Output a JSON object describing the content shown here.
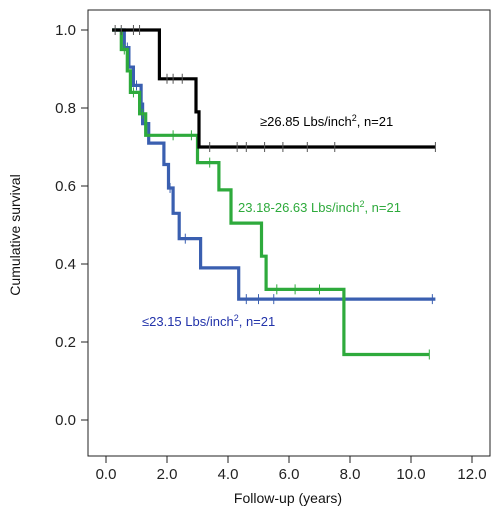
{
  "chart_data": {
    "type": "line",
    "subtype": "kaplan-meier step survival curves",
    "xlabel": "Follow-up (years)",
    "ylabel": "Cumulative survival",
    "xlim": [
      0,
      12
    ],
    "ylim": [
      0,
      1
    ],
    "x_ticks": [
      "0.0",
      "2.0",
      "4.0",
      "6.0",
      "8.0",
      "10.0",
      "12.0"
    ],
    "y_ticks": [
      "0.0",
      "0.2",
      "0.4",
      "0.6",
      "0.8",
      "1.0"
    ],
    "grid": false,
    "legend": "none (inline annotations)",
    "series": [
      {
        "color": "#000000",
        "steps": [
          [
            0.2,
            1.0
          ],
          [
            1.75,
            1.0
          ],
          [
            1.75,
            0.875
          ],
          [
            2.95,
            0.875
          ],
          [
            2.95,
            0.79
          ],
          [
            3.05,
            0.79
          ],
          [
            3.05,
            0.7
          ],
          [
            10.8,
            0.7
          ]
        ],
        "censored": [
          [
            0.3,
            1.0
          ],
          [
            0.5,
            1.0
          ],
          [
            0.9,
            1.0
          ],
          [
            1.1,
            1.0
          ],
          [
            2.0,
            0.875
          ],
          [
            2.2,
            0.875
          ],
          [
            2.5,
            0.875
          ],
          [
            3.4,
            0.7
          ],
          [
            4.3,
            0.7
          ],
          [
            4.6,
            0.7
          ],
          [
            5.2,
            0.7
          ],
          [
            5.8,
            0.7
          ],
          [
            6.6,
            0.7
          ],
          [
            7.5,
            0.7
          ],
          [
            10.8,
            0.7
          ]
        ]
      },
      {
        "color": "#2eaa3c",
        "steps": [
          [
            0.2,
            1.0
          ],
          [
            0.5,
            1.0
          ],
          [
            0.5,
            0.95
          ],
          [
            0.7,
            0.95
          ],
          [
            0.7,
            0.895
          ],
          [
            0.8,
            0.895
          ],
          [
            0.8,
            0.84
          ],
          [
            1.1,
            0.84
          ],
          [
            1.1,
            0.785
          ],
          [
            1.3,
            0.785
          ],
          [
            1.3,
            0.73
          ],
          [
            3.0,
            0.73
          ],
          [
            3.0,
            0.66
          ],
          [
            3.7,
            0.66
          ],
          [
            3.7,
            0.59
          ],
          [
            4.1,
            0.59
          ],
          [
            4.1,
            0.505
          ],
          [
            5.1,
            0.505
          ],
          [
            5.1,
            0.42
          ],
          [
            5.25,
            0.42
          ],
          [
            5.25,
            0.335
          ],
          [
            7.8,
            0.335
          ],
          [
            7.8,
            0.168
          ],
          [
            10.6,
            0.168
          ]
        ],
        "censored": [
          [
            0.6,
            0.95
          ],
          [
            0.9,
            0.84
          ],
          [
            1.2,
            0.785
          ],
          [
            2.2,
            0.73
          ],
          [
            2.8,
            0.73
          ],
          [
            3.4,
            0.66
          ],
          [
            5.6,
            0.335
          ],
          [
            6.2,
            0.335
          ],
          [
            7.0,
            0.335
          ],
          [
            10.6,
            0.168
          ]
        ]
      },
      {
        "color": "#3a5fb0",
        "steps": [
          [
            0.2,
            1.0
          ],
          [
            0.6,
            1.0
          ],
          [
            0.6,
            0.955
          ],
          [
            0.75,
            0.955
          ],
          [
            0.75,
            0.905
          ],
          [
            0.9,
            0.905
          ],
          [
            0.9,
            0.858
          ],
          [
            1.15,
            0.858
          ],
          [
            1.15,
            0.81
          ],
          [
            1.2,
            0.81
          ],
          [
            1.2,
            0.76
          ],
          [
            1.4,
            0.76
          ],
          [
            1.4,
            0.71
          ],
          [
            1.9,
            0.71
          ],
          [
            1.9,
            0.655
          ],
          [
            2.05,
            0.655
          ],
          [
            2.05,
            0.595
          ],
          [
            2.2,
            0.595
          ],
          [
            2.2,
            0.53
          ],
          [
            2.4,
            0.53
          ],
          [
            2.4,
            0.465
          ],
          [
            3.1,
            0.465
          ],
          [
            3.1,
            0.39
          ],
          [
            4.35,
            0.39
          ],
          [
            4.35,
            0.31
          ],
          [
            10.8,
            0.31
          ]
        ],
        "censored": [
          [
            0.7,
            0.955
          ],
          [
            1.0,
            0.858
          ],
          [
            2.1,
            0.595
          ],
          [
            2.6,
            0.465
          ],
          [
            4.6,
            0.31
          ],
          [
            5.0,
            0.31
          ],
          [
            5.5,
            0.31
          ],
          [
            10.7,
            0.31
          ]
        ]
      }
    ],
    "annotations": [
      {
        "parts": [
          "≥26.85 Lbs/inch",
          "2",
          ", n=21"
        ],
        "color": "#000000",
        "at": [
          8.0,
          0.7
        ]
      },
      {
        "parts": [
          "23.18-26.63 Lbs/inch",
          "2",
          ", n=21"
        ],
        "color": "#2eaa3c",
        "at": [
          5.6,
          0.55
        ]
      },
      {
        "parts": [
          "≤23.15 Lbs/inch",
          "2",
          ", n=21"
        ],
        "color": "#2233aa",
        "at": [
          4.0,
          0.27
        ]
      }
    ]
  }
}
